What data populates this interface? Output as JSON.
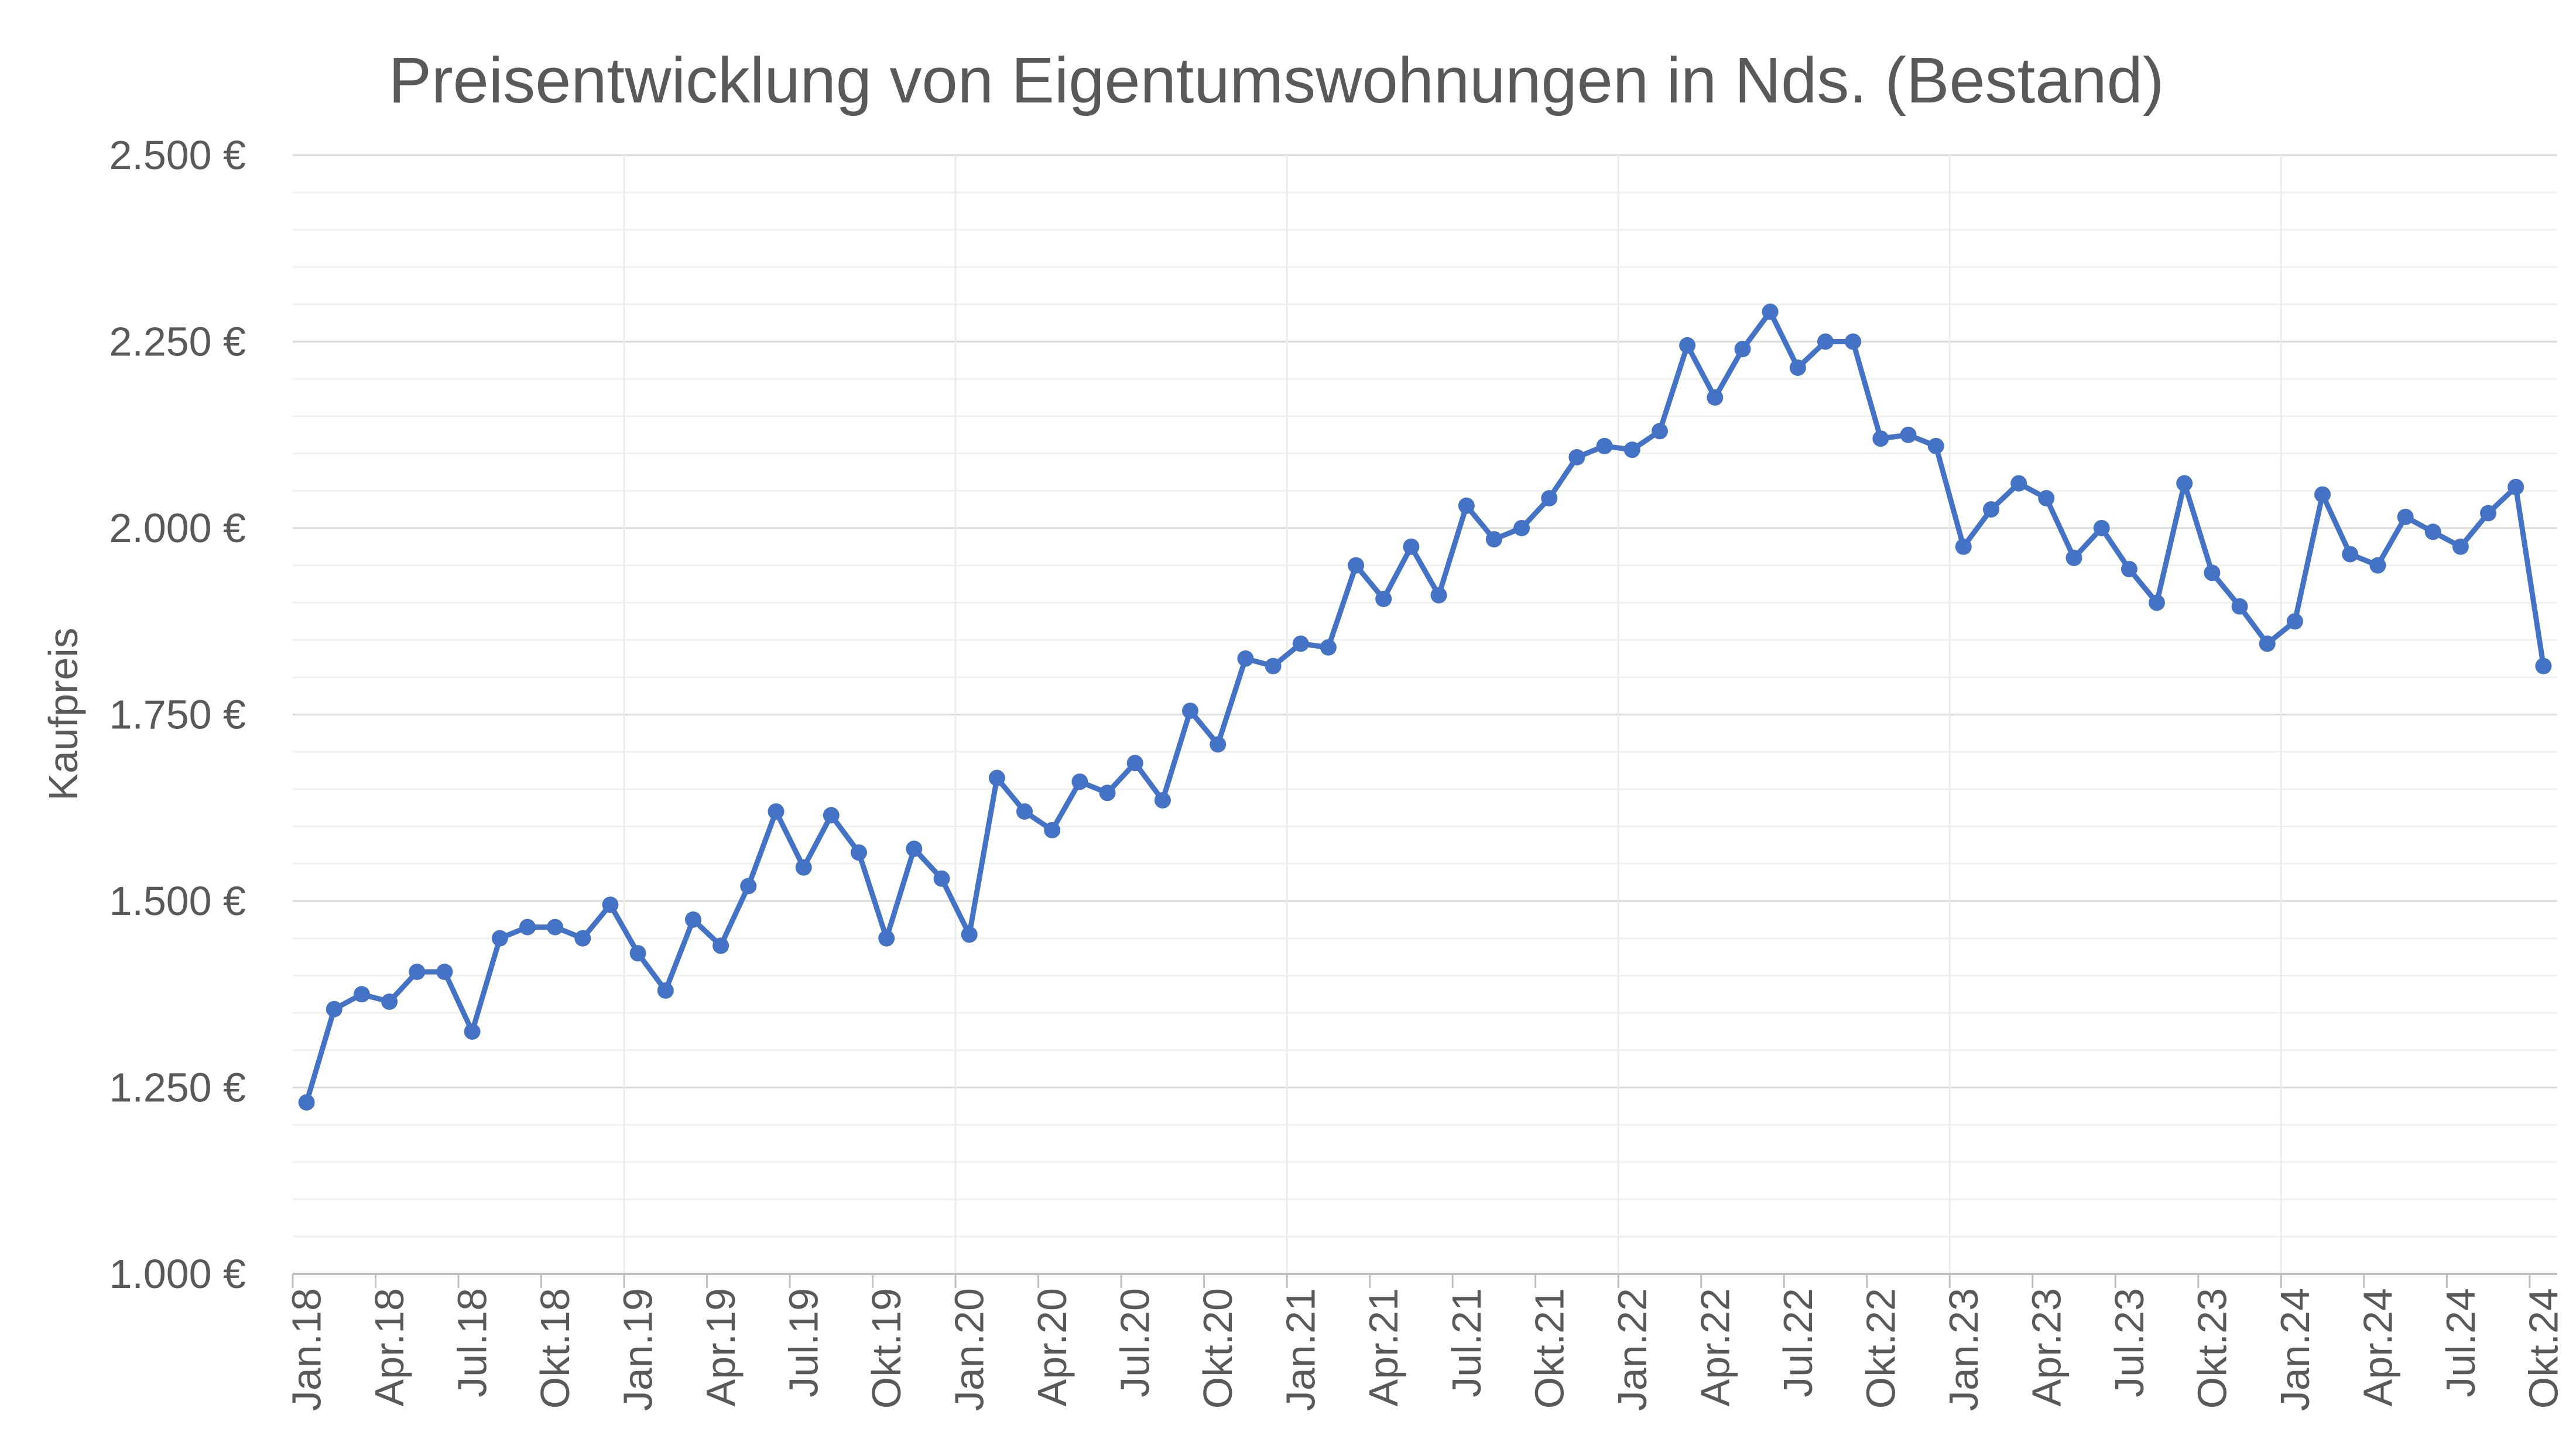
{
  "chart_data": {
    "type": "line",
    "title": "Preisentwicklung von Eigentumswohnungen in Nds. (Bestand)",
    "xlabel": "",
    "ylabel": "Kaufpreis",
    "ylim": [
      1000,
      2500
    ],
    "ytick_values": [
      1000,
      1250,
      1500,
      1750,
      2000,
      2250,
      2500
    ],
    "ytick_labels": [
      "1.000 €",
      "1.250 €",
      "1.500 €",
      "1.750 €",
      "2.000 €",
      "2.250 €",
      "2.500 €"
    ],
    "xtick_labels": [
      "Jan.18",
      "Apr.18",
      "Jul.18",
      "Okt.18",
      "Jan.19",
      "Apr.19",
      "Jul.19",
      "Okt.19",
      "Jan.20",
      "Apr.20",
      "Jul.20",
      "Okt.20",
      "Jan.21",
      "Apr.21",
      "Jul.21",
      "Okt.21",
      "Jan.22",
      "Apr.22",
      "Jul.22",
      "Okt.22",
      "Jan.23",
      "Apr.23",
      "Jul.23",
      "Okt.23",
      "Jan.24",
      "Apr.24",
      "Jul.24",
      "Okt.24"
    ],
    "grid": true,
    "color": "#4472C4",
    "series": [
      {
        "name": "Kaufpreis",
        "values": [
          1230,
          1355,
          1375,
          1365,
          1405,
          1405,
          1325,
          1450,
          1465,
          1465,
          1450,
          1495,
          1430,
          1380,
          1475,
          1440,
          1520,
          1620,
          1545,
          1615,
          1565,
          1450,
          1570,
          1530,
          1455,
          1665,
          1620,
          1595,
          1660,
          1645,
          1685,
          1635,
          1755,
          1710,
          1825,
          1815,
          1845,
          1840,
          1950,
          1905,
          1975,
          1910,
          2030,
          1985,
          2000,
          2040,
          2095,
          2110,
          2105,
          2130,
          2245,
          2175,
          2240,
          2290,
          2215,
          2250,
          2250,
          2120,
          2125,
          2110,
          1975,
          2025,
          2060,
          2040,
          1960,
          2000,
          1945,
          1900,
          2060,
          1940,
          1895,
          1845,
          1875,
          2045,
          1965,
          1950,
          2015,
          1995,
          1975,
          2020,
          2055,
          1815
        ]
      }
    ]
  }
}
